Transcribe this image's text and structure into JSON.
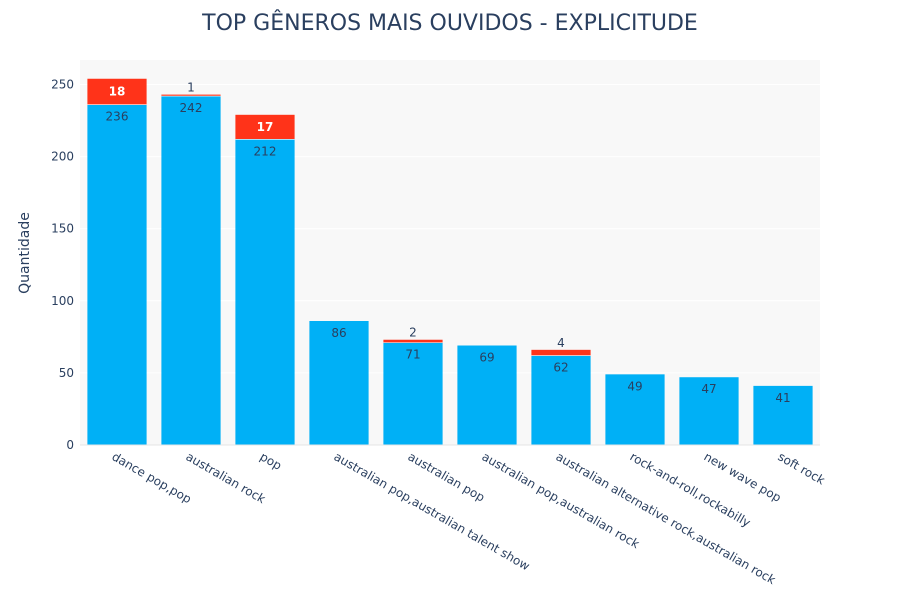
{
  "chart_data": {
    "type": "bar",
    "stacked": true,
    "title": "TOP GÊNEROS MAIS OUVIDOS - EXPLICITUDE",
    "xlabel": "",
    "ylabel": "Quantidade",
    "ylim": [
      0,
      267
    ],
    "yticks": [
      0,
      50,
      100,
      150,
      200,
      250
    ],
    "grid": true,
    "categories": [
      "dance pop,pop",
      "australian rock",
      "pop",
      "australian pop,australian talent show",
      "australian pop",
      "australian pop,australian rock",
      "australian alternative rock,australian rock",
      "rock-and-roll,rockabilly",
      "new wave pop",
      "soft rock"
    ],
    "series": [
      {
        "values": [
          236,
          242,
          212,
          86,
          71,
          69,
          62,
          49,
          47,
          41
        ]
      },
      {
        "values": [
          18,
          1,
          17,
          0,
          2,
          0,
          4,
          0,
          0,
          0
        ]
      }
    ],
    "colors": {
      "clean": "#00b0f6",
      "explicit": "#ff3319",
      "plot_bg": "#f8f8f8",
      "grid": "#ffffff",
      "text": "#2a3f5f"
    }
  }
}
